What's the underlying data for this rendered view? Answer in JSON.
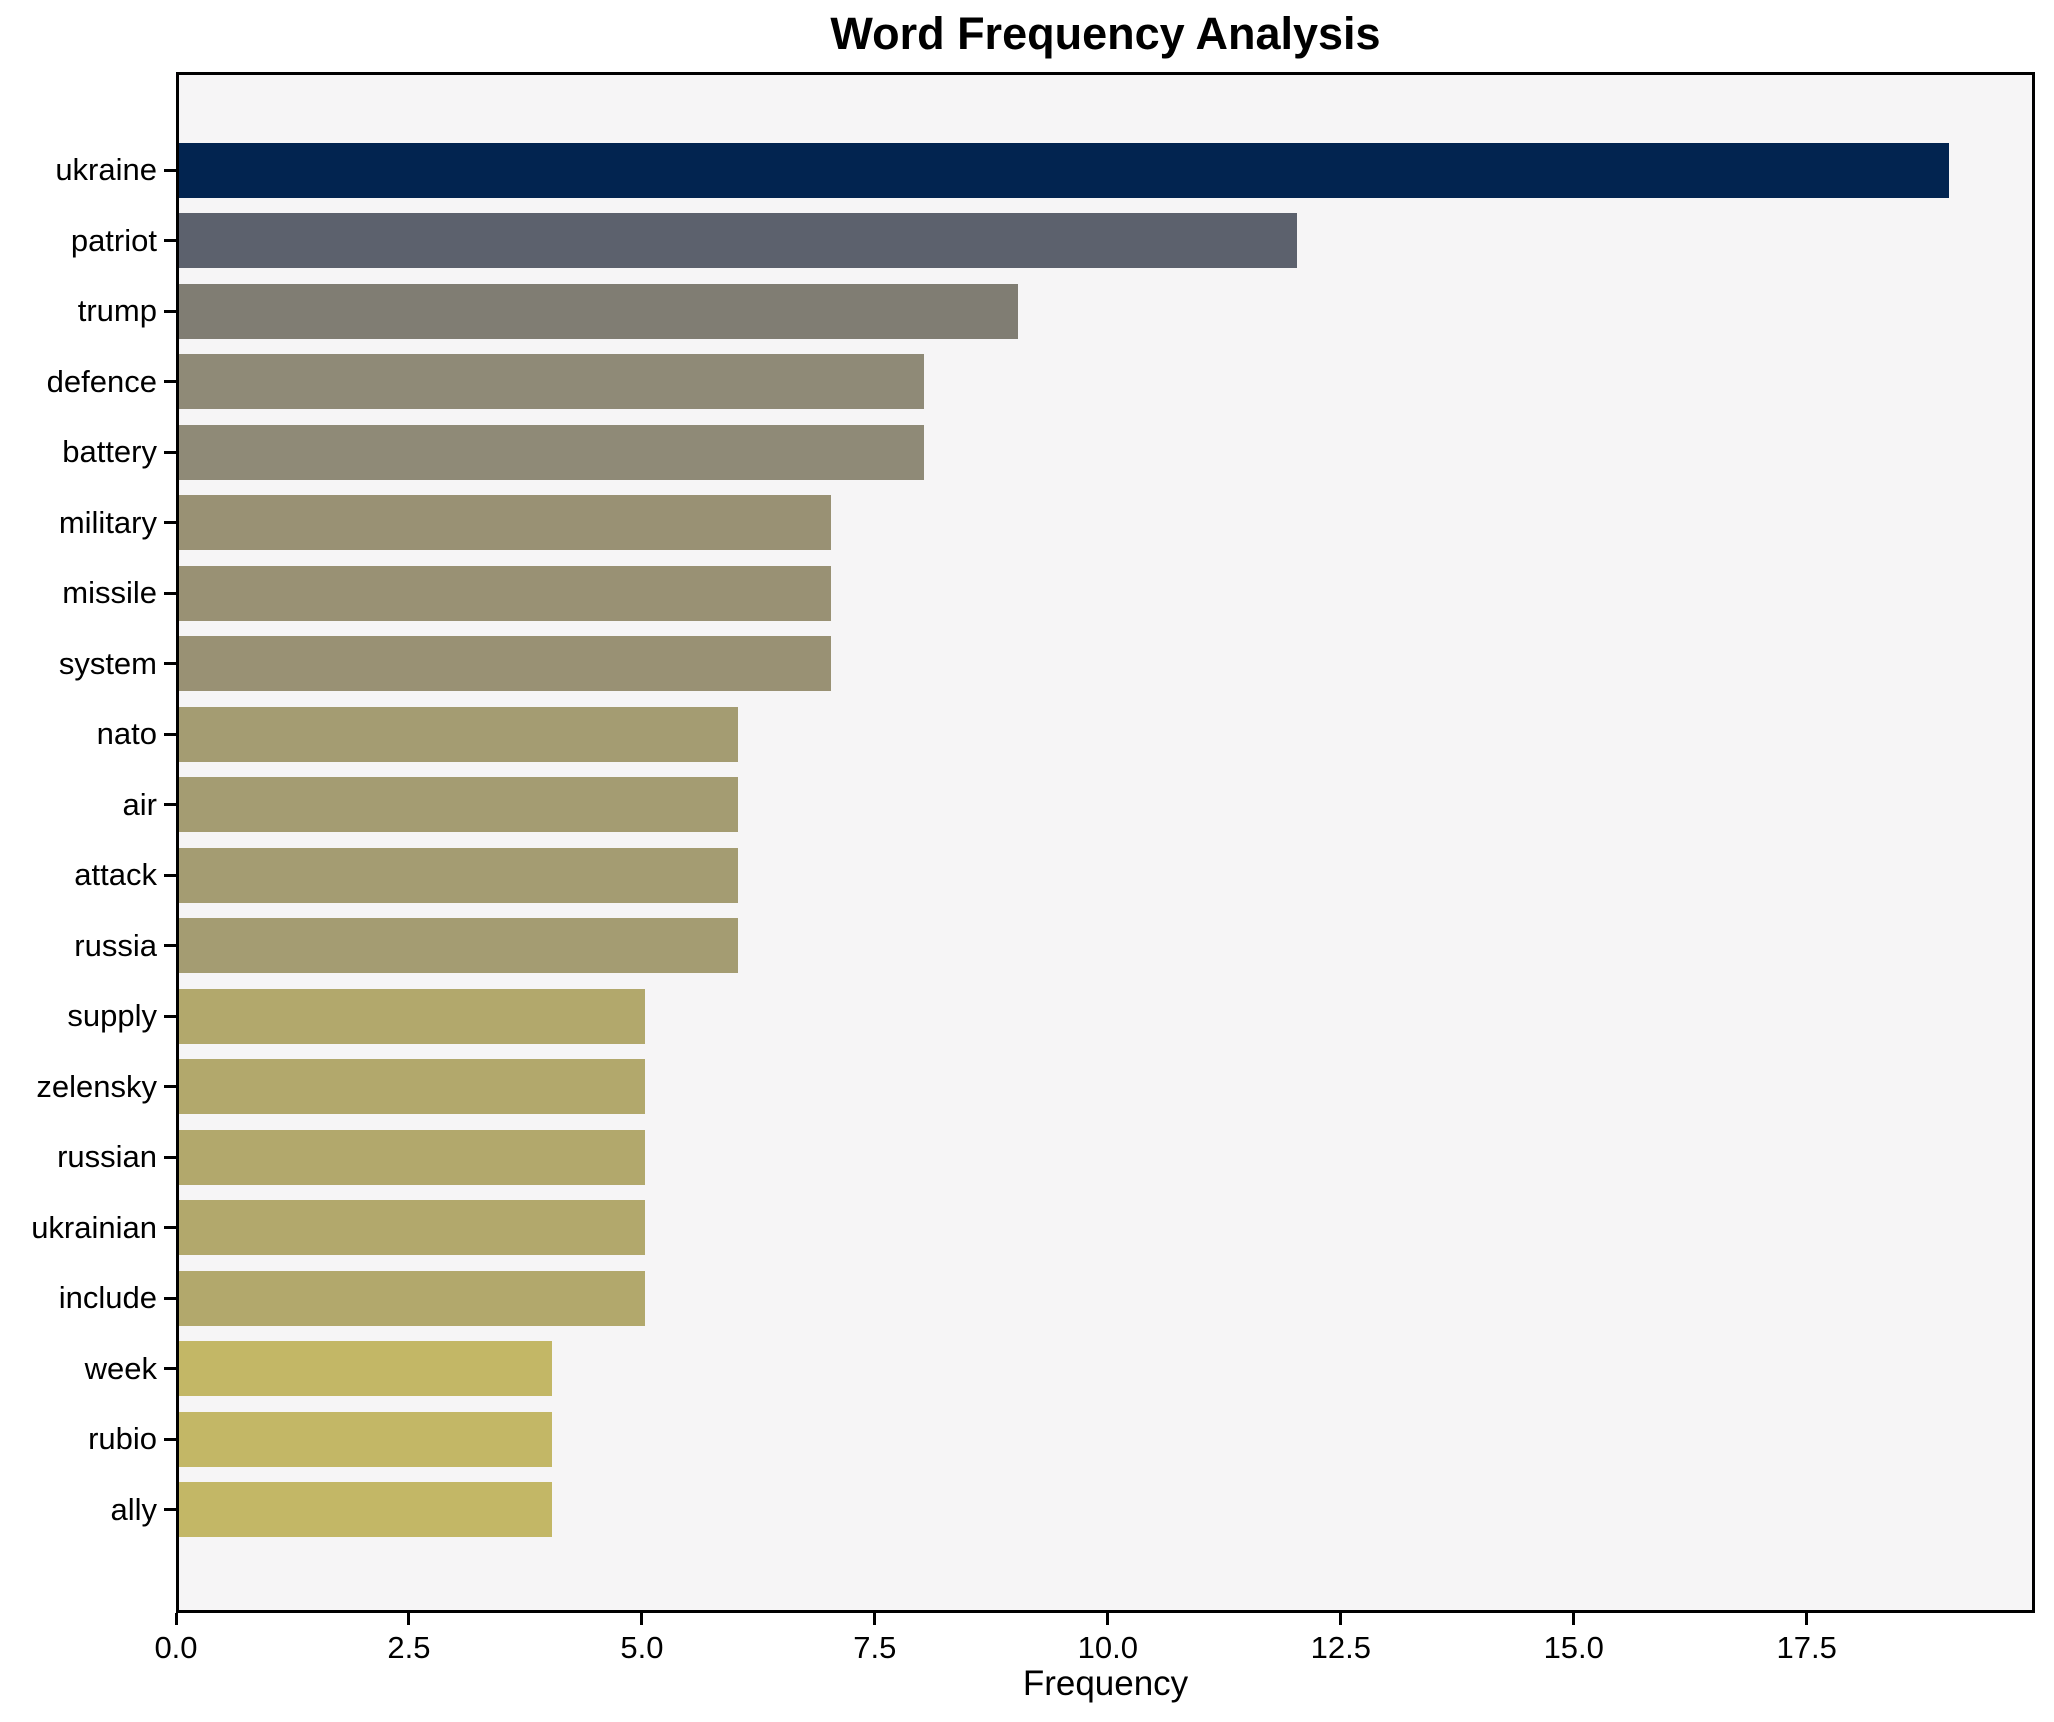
{
  "chart_data": {
    "type": "bar",
    "orientation": "horizontal",
    "title": "Word Frequency Analysis",
    "xlabel": "Frequency",
    "ylabel": "",
    "categories": [
      "ukraine",
      "patriot",
      "trump",
      "defence",
      "battery",
      "military",
      "missile",
      "system",
      "nato",
      "air",
      "attack",
      "russia",
      "supply",
      "zelensky",
      "russian",
      "ukrainian",
      "include",
      "week",
      "rubio",
      "ally"
    ],
    "values": [
      19,
      12,
      9,
      8,
      8,
      7,
      7,
      7,
      6,
      6,
      6,
      6,
      5,
      5,
      5,
      5,
      5,
      4,
      4,
      4
    ],
    "bar_colors": [
      "#022450",
      "#5c616d",
      "#807d73",
      "#8f8a77",
      "#8f8a77",
      "#999174",
      "#999174",
      "#999174",
      "#a49c72",
      "#a49c72",
      "#a49c72",
      "#a49c72",
      "#b2a86c",
      "#b2a86c",
      "#b2a86c",
      "#b2a86c",
      "#b2a86c",
      "#c3b766",
      "#c3b766",
      "#c3b766"
    ],
    "xticks": [
      0,
      2.5,
      5,
      7.5,
      10,
      12.5,
      15,
      17.5
    ],
    "xtick_labels": [
      "0.0",
      "2.5",
      "5.0",
      "7.5",
      "10.0",
      "12.5",
      "15.0",
      "17.5"
    ],
    "xlim": [
      0,
      19.95
    ],
    "grid": false,
    "legend": false,
    "colormap": "cividis",
    "colors": {
      "figure_background": "#ffffff",
      "plot_background": "#f6f5f6",
      "spine": "#000000",
      "text": "#000000"
    }
  }
}
